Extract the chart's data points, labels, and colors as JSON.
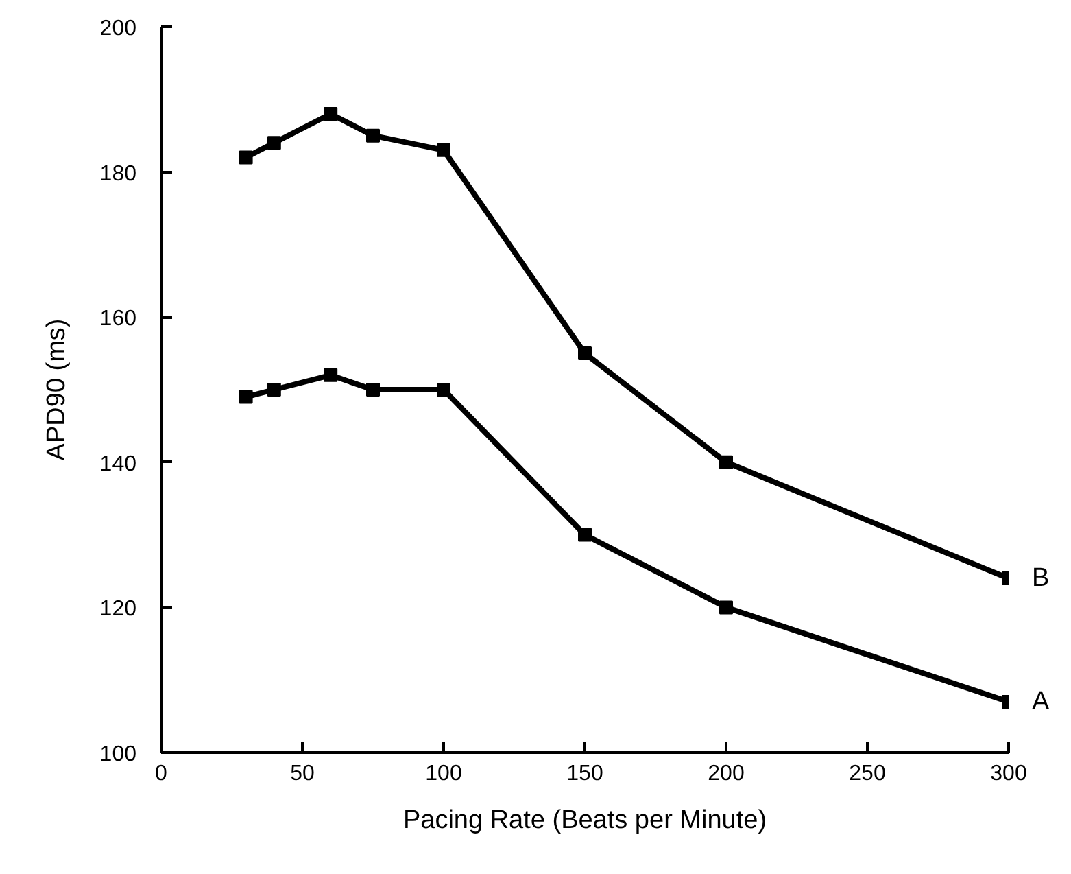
{
  "chart_data": {
    "type": "line",
    "xlabel": "Pacing Rate (Beats per Minute)",
    "ylabel": "APD90 (ms)",
    "x": [
      30,
      40,
      60,
      75,
      100,
      150,
      200,
      300
    ],
    "series": [
      {
        "name": "B",
        "color": "#000000",
        "values": [
          182,
          184,
          188,
          185,
          183,
          155,
          140,
          124
        ]
      },
      {
        "name": "A",
        "color": "#000000",
        "values": [
          149,
          150,
          152,
          150,
          150,
          130,
          120,
          107
        ]
      }
    ],
    "xlim": [
      0,
      300
    ],
    "ylim": [
      100,
      200
    ],
    "xticks": [
      0,
      50,
      100,
      150,
      200,
      250,
      300
    ],
    "yticks": [
      100,
      120,
      140,
      160,
      180,
      200
    ],
    "grid": false,
    "legend": false,
    "marker": "square",
    "line_style": "solid"
  }
}
